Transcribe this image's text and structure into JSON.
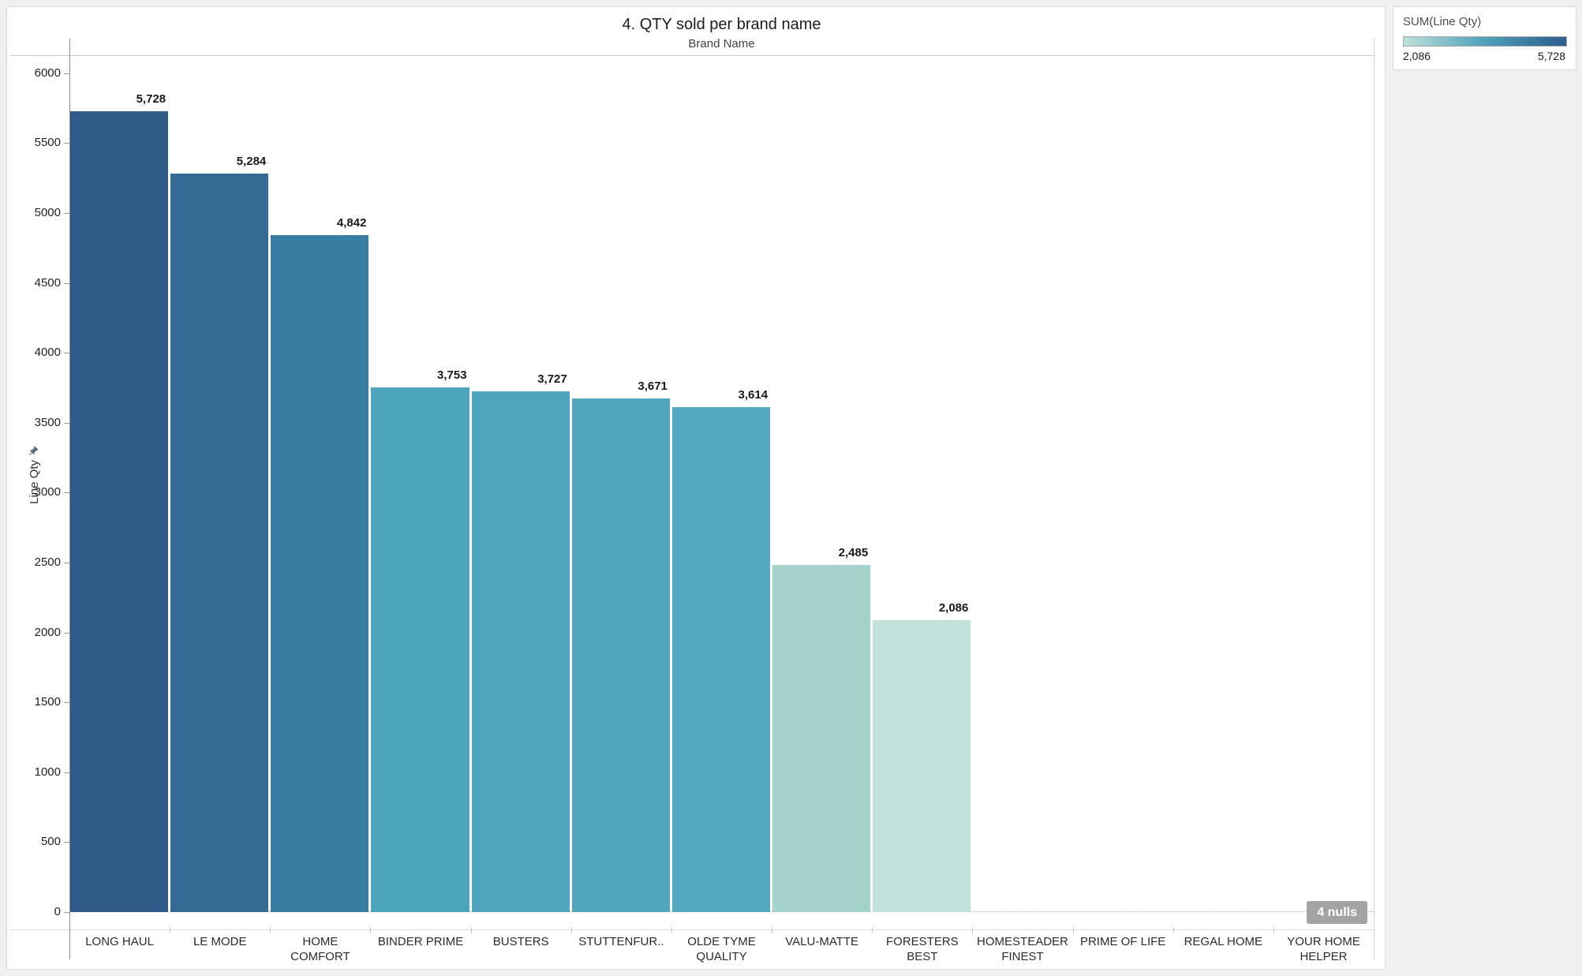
{
  "page": {
    "background": "#f0f0ef"
  },
  "header": {
    "title": "4. QTY sold per brand name",
    "column_header": "Brand Name"
  },
  "y_axis": {
    "title": "Line Qty",
    "pin_icon": "pushpin-icon"
  },
  "null_indicator": {
    "label": "4 nulls",
    "background": "#a3a3a3"
  },
  "legend": {
    "title": "SUM(Line Qty)",
    "min_label": "2,086",
    "max_label": "5,728",
    "gradient_stops": [
      "#bce0d8",
      "#4fa0ba",
      "#2d5d8c"
    ]
  },
  "chart_data": {
    "type": "bar",
    "title": "4. QTY sold per brand name",
    "xlabel": "Brand Name",
    "ylabel": "Line Qty",
    "ylim": [
      0,
      6150
    ],
    "grid": false,
    "legend_position": "top-right",
    "ytick_values": [
      0,
      500,
      1000,
      1500,
      2000,
      2500,
      3000,
      3500,
      4000,
      4500,
      5000,
      5500,
      6000
    ],
    "ytick_labels": [
      "0",
      "500",
      "1000",
      "1500",
      "2000",
      "2500",
      "3000",
      "3500",
      "4000",
      "4500",
      "5000",
      "5500",
      "6000"
    ],
    "categories": [
      "LONG HAUL",
      "LE MODE",
      "HOME COMFORT",
      "BINDER PRIME",
      "BUSTERS",
      "STUTTENFUR..",
      "OLDE TYME QUALITY",
      "VALU-MATTE",
      "FORESTERS BEST",
      "HOMESTEADER FINEST",
      "PRIME OF LIFE",
      "REGAL HOME",
      "YOUR HOME HELPER"
    ],
    "values": [
      5728,
      5284,
      4842,
      3753,
      3727,
      3671,
      3614,
      2485,
      2086,
      null,
      null,
      null,
      null
    ],
    "value_labels": [
      "5,728",
      "5,284",
      "4,842",
      "3,753",
      "3,727",
      "3,671",
      "3,614",
      "2,485",
      "2,086",
      null,
      null,
      null,
      null
    ],
    "bar_colors": [
      "#305a88",
      "#336b95",
      "#3a7da2",
      "#4da4bd",
      "#4fa5be",
      "#51a6be",
      "#53a7bf",
      "#a3d3cb",
      "#c2e1da",
      null,
      null,
      null,
      null
    ],
    "null_count_note": "4 nulls",
    "color_encoding": {
      "field": "SUM(Line Qty)",
      "min": 2086,
      "max": 5728
    }
  }
}
